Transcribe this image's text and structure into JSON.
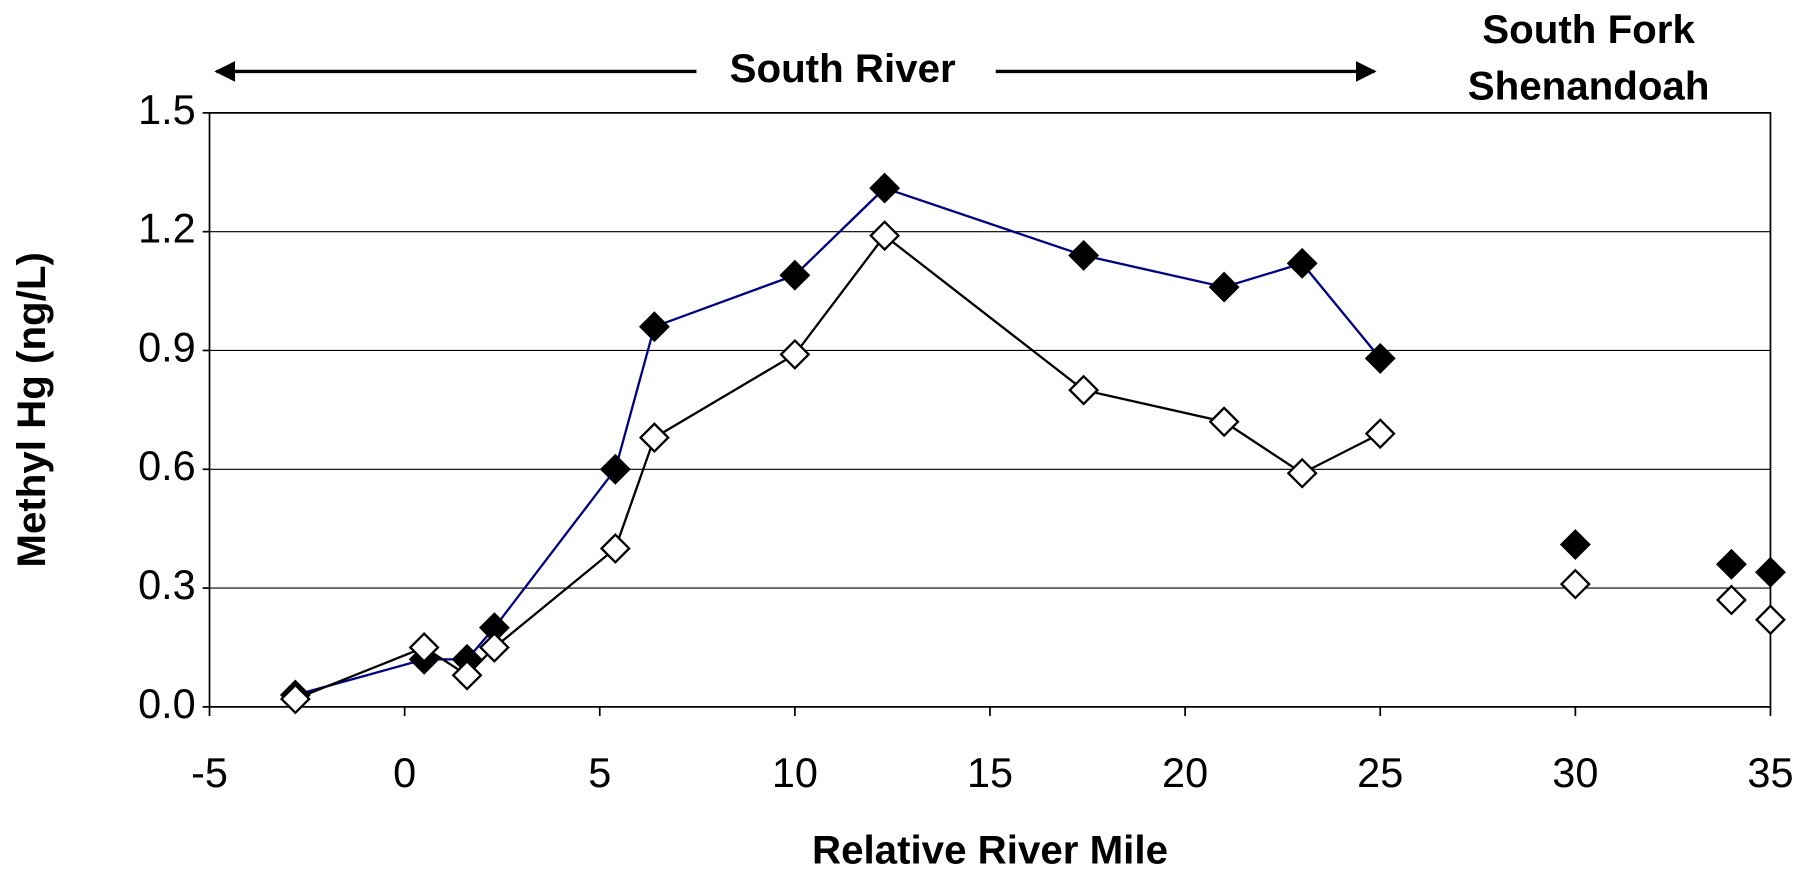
{
  "chart_data": {
    "type": "line",
    "x_label": "Relative River Mile",
    "y_label": "Methyl Hg (ng/L)",
    "annotations": [
      "South River",
      "South Fork",
      "Shenandoah"
    ],
    "xlim": [
      -5,
      35
    ],
    "xticks": [
      -5,
      0,
      5,
      10,
      15,
      20,
      25,
      30,
      35
    ],
    "ylim": [
      0,
      1.5
    ],
    "yticks": [
      {
        "value": 0,
        "label": "0.0"
      },
      0.3,
      0.6,
      0.9,
      1.2,
      1.5
    ],
    "grid": true,
    "series": [
      {
        "color": "#000080",
        "marker": "filled",
        "line": true,
        "x": [
          -2.8,
          0.5,
          1.6,
          2.3,
          5.4,
          6.4,
          10.0,
          12.3,
          17.4,
          21.0,
          23.0,
          25.0
        ],
        "values": [
          0.03,
          0.12,
          0.12,
          0.2,
          0.6,
          0.96,
          1.09,
          1.31,
          1.14,
          1.06,
          1.12,
          0.88
        ]
      },
      {
        "color": "#000000",
        "marker": "open",
        "line": true,
        "x": [
          -2.8,
          0.5,
          1.6,
          2.3,
          5.4,
          6.4,
          10.0,
          12.3,
          17.4,
          21.0,
          23.0,
          25.0
        ],
        "values": [
          0.02,
          0.15,
          0.08,
          0.15,
          0.4,
          0.68,
          0.89,
          1.19,
          0.8,
          0.72,
          0.59,
          0.69
        ]
      },
      {
        "color": "#000000",
        "marker": "filled",
        "line": false,
        "x": [
          30.0,
          34.0,
          35.0
        ],
        "values": [
          0.41,
          0.36,
          0.34
        ]
      },
      {
        "color": "#000000",
        "marker": "open",
        "line": false,
        "x": [
          30.0,
          34.0,
          35.0
        ],
        "values": [
          0.31,
          0.27,
          0.22
        ]
      }
    ]
  }
}
